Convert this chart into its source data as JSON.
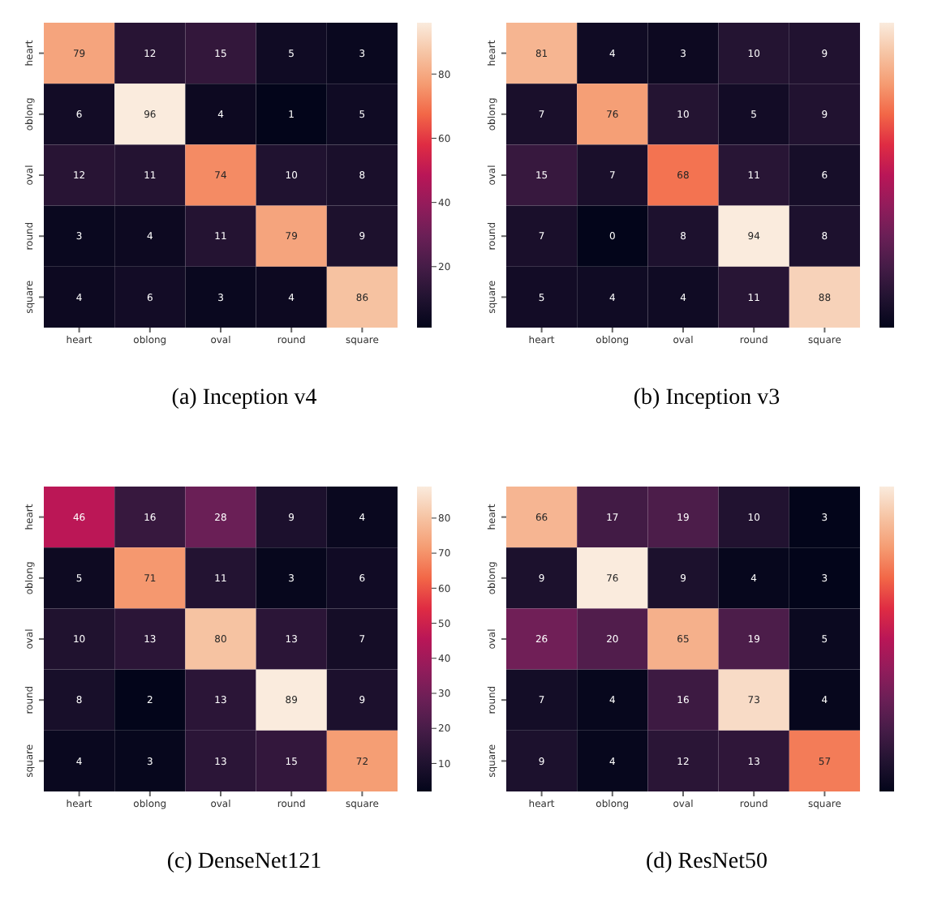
{
  "chart_data": [
    {
      "type": "heatmap",
      "title": "(a) Inception v4",
      "categories": [
        "heart",
        "oblong",
        "oval",
        "round",
        "square"
      ],
      "y_categories": [
        "heart",
        "oblong",
        "oval",
        "round",
        "square"
      ],
      "cells": [
        [
          79,
          12,
          15,
          5,
          3
        ],
        [
          6,
          96,
          4,
          1,
          5
        ],
        [
          12,
          11,
          74,
          10,
          8
        ],
        [
          3,
          4,
          11,
          79,
          9
        ],
        [
          4,
          6,
          3,
          4,
          86
        ]
      ],
      "clim": [
        1,
        96
      ],
      "cticks": [
        20,
        40,
        60,
        80
      ],
      "data_labels": true
    },
    {
      "type": "heatmap",
      "title": "(b) Inception v3",
      "categories": [
        "heart",
        "oblong",
        "oval",
        "round",
        "square"
      ],
      "y_categories": [
        "heart",
        "oblong",
        "oval",
        "round",
        "square"
      ],
      "cells": [
        [
          81,
          4,
          3,
          10,
          9
        ],
        [
          7,
          76,
          10,
          5,
          9
        ],
        [
          15,
          7,
          68,
          11,
          6
        ],
        [
          7,
          0,
          8,
          94,
          8
        ],
        [
          5,
          4,
          4,
          11,
          88
        ]
      ],
      "data_labels": true
    },
    {
      "type": "heatmap",
      "title": "(c) DenseNet121",
      "categories": [
        "heart",
        "oblong",
        "oval",
        "round",
        "square"
      ],
      "y_categories": [
        "heart",
        "oblong",
        "oval",
        "round",
        "square"
      ],
      "cells": [
        [
          46,
          16,
          28,
          9,
          4
        ],
        [
          5,
          71,
          11,
          3,
          6
        ],
        [
          10,
          13,
          80,
          13,
          7
        ],
        [
          8,
          2,
          13,
          89,
          9
        ],
        [
          4,
          3,
          13,
          15,
          72
        ]
      ],
      "clim": [
        2,
        89
      ],
      "cticks": [
        10,
        20,
        30,
        40,
        50,
        60,
        70,
        80
      ],
      "data_labels": true
    },
    {
      "type": "heatmap",
      "title": "(d) ResNet50",
      "categories": [
        "heart",
        "oblong",
        "oval",
        "round",
        "square"
      ],
      "y_categories": [
        "heart",
        "oblong",
        "oval",
        "round",
        "square"
      ],
      "cells": [
        [
          66,
          17,
          19,
          10,
          3
        ],
        [
          9,
          76,
          9,
          4,
          3
        ],
        [
          26,
          20,
          65,
          19,
          5
        ],
        [
          7,
          4,
          16,
          73,
          4
        ],
        [
          9,
          4,
          12,
          13,
          57
        ]
      ],
      "data_labels": true
    }
  ]
}
